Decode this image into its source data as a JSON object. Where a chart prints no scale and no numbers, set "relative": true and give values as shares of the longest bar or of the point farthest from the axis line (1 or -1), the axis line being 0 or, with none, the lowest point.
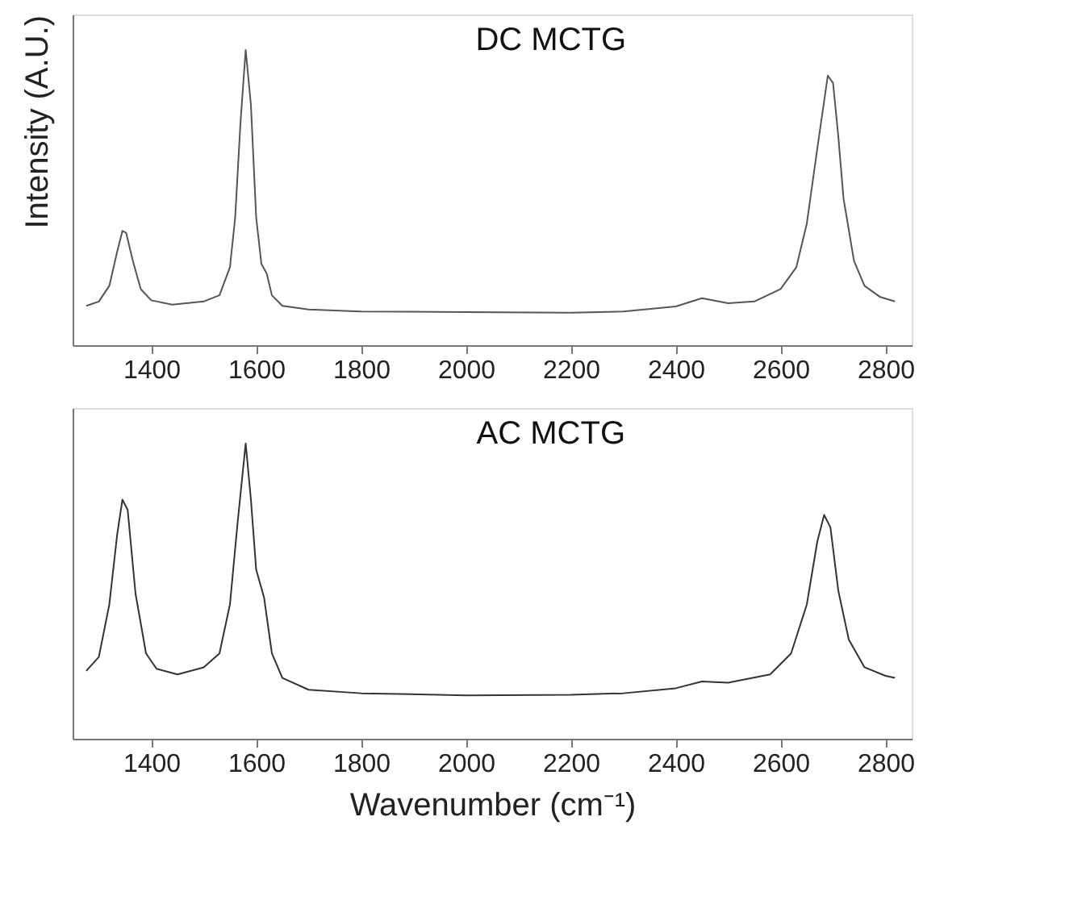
{
  "chart_data": [
    {
      "type": "line",
      "title": "DC MCTG",
      "ylabel": "Intensity (A.U.)",
      "relative": true,
      "tick_labels": "x",
      "xlim": [
        1250,
        2850
      ],
      "xticks": [
        1400,
        1600,
        1800,
        2000,
        2200,
        2400,
        2600,
        2800
      ],
      "grid": false,
      "marker": "none",
      "line_style": "solid",
      "series": [
        {
          "color": "#555555",
          "x": [
            1276,
            1300,
            1320,
            1335,
            1345,
            1352,
            1365,
            1380,
            1400,
            1440,
            1500,
            1530,
            1550,
            1560,
            1570,
            1580,
            1590,
            1600,
            1610,
            1620,
            1630,
            1650,
            1700,
            1800,
            2000,
            2200,
            2300,
            2400,
            2450,
            2500,
            2550,
            2600,
            2630,
            2650,
            2670,
            2690,
            2700,
            2710,
            2720,
            2740,
            2760,
            2790,
            2818
          ],
          "values": [
            0.133,
            0.148,
            0.201,
            0.317,
            0.387,
            0.381,
            0.285,
            0.19,
            0.152,
            0.137,
            0.148,
            0.169,
            0.264,
            0.433,
            0.751,
            1.0,
            0.814,
            0.433,
            0.275,
            0.243,
            0.169,
            0.133,
            0.121,
            0.114,
            0.112,
            0.11,
            0.114,
            0.131,
            0.159,
            0.142,
            0.148,
            0.19,
            0.264,
            0.412,
            0.666,
            0.913,
            0.888,
            0.708,
            0.497,
            0.285,
            0.201,
            0.163,
            0.148
          ]
        }
      ]
    },
    {
      "type": "line",
      "title": "AC MCTG",
      "xlabel": "Wavenumber (cm⁻¹)",
      "relative": true,
      "tick_labels": "x",
      "xlim": [
        1250,
        2850
      ],
      "xticks": [
        1400,
        1600,
        1800,
        2000,
        2200,
        2400,
        2600,
        2800
      ],
      "grid": false,
      "marker": "none",
      "line_style": "solid",
      "series": [
        {
          "color": "#333333",
          "x": [
            1276,
            1300,
            1320,
            1335,
            1345,
            1355,
            1370,
            1390,
            1410,
            1450,
            1500,
            1530,
            1550,
            1565,
            1580,
            1590,
            1600,
            1615,
            1630,
            1650,
            1700,
            1800,
            2000,
            2200,
            2300,
            2400,
            2450,
            2500,
            2580,
            2620,
            2650,
            2670,
            2683,
            2695,
            2710,
            2730,
            2760,
            2800,
            2818
          ],
          "values": [
            0.23,
            0.277,
            0.455,
            0.692,
            0.81,
            0.775,
            0.491,
            0.289,
            0.237,
            0.218,
            0.242,
            0.289,
            0.455,
            0.739,
            1.0,
            0.81,
            0.573,
            0.479,
            0.289,
            0.206,
            0.166,
            0.154,
            0.147,
            0.149,
            0.154,
            0.171,
            0.194,
            0.19,
            0.218,
            0.289,
            0.455,
            0.668,
            0.758,
            0.716,
            0.502,
            0.336,
            0.242,
            0.213,
            0.206
          ]
        }
      ]
    }
  ]
}
